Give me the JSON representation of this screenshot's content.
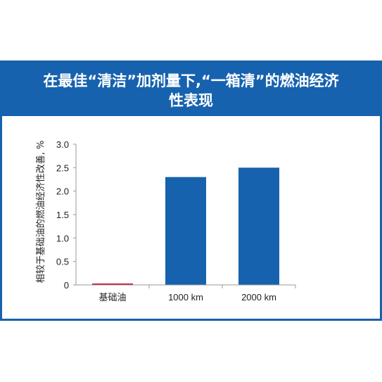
{
  "header": {
    "title_line1": "在最佳“清洁”加剂量下,“一箱清”的燃油经济",
    "title_line2": "性表现"
  },
  "colors": {
    "brand_blue": "#1762ae",
    "bar_blue": "#1762ae",
    "baseline_red": "#c8102e",
    "axis": "#999999"
  },
  "chart_data": {
    "type": "bar",
    "categories": [
      "基础油",
      "1000 km",
      "2000 km"
    ],
    "values": [
      0,
      2.3,
      2.5
    ],
    "ylabel": "相较于基础油的燃油经济性改善, %",
    "ylim": [
      0,
      3.0
    ],
    "yticks": [
      "0",
      "0.5",
      "1.0",
      "1.5",
      "2.0",
      "2.5",
      "3.0"
    ],
    "grid": false,
    "legend": "none"
  }
}
